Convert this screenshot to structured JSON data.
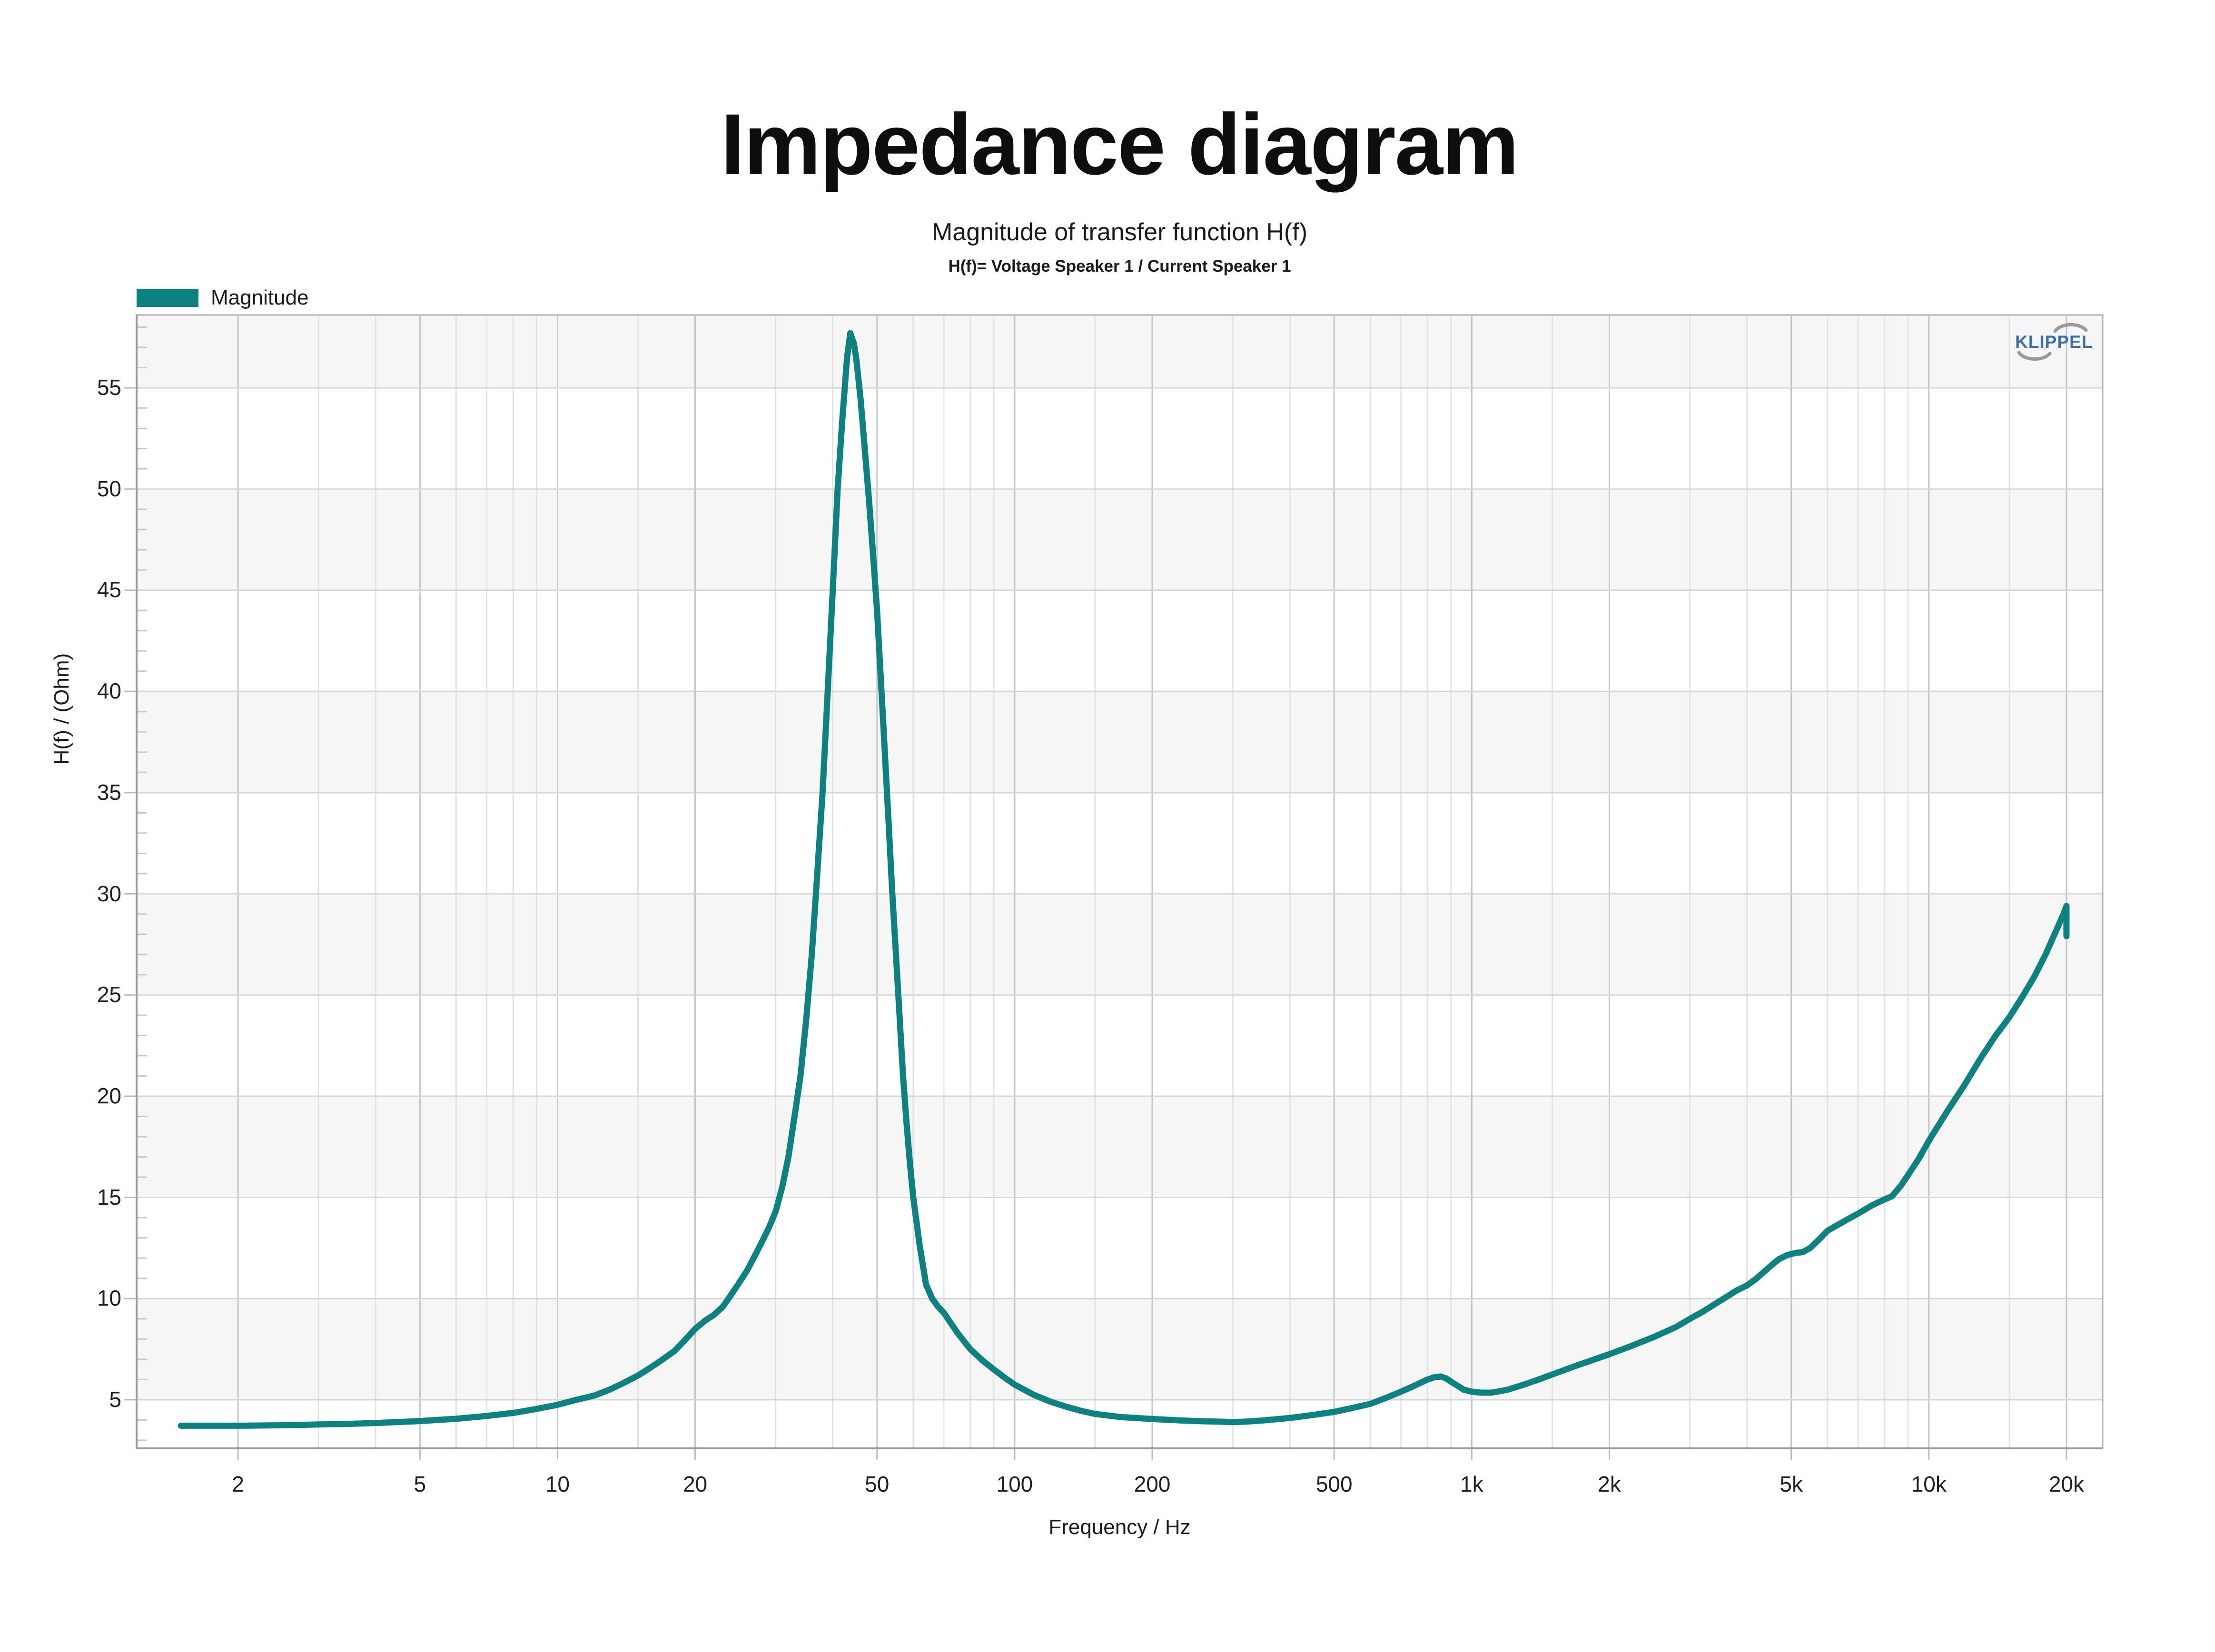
{
  "title": "Impedance diagram",
  "subtitle": "Magnitude of transfer function H(f)",
  "subsubtitle": "H(f)= Voltage Speaker 1 / Current Speaker 1",
  "legend": {
    "label": "Magnitude",
    "color": "#0e8180"
  },
  "logo": {
    "text": "KLIPPEL",
    "text_color": "#3c70a6",
    "arc_color": "#9a9a9a"
  },
  "chart_data": {
    "type": "line",
    "title": "Magnitude of transfer function H(f)",
    "xlabel": "Frequency / Hz",
    "ylabel": "H(f) / (Ohm)",
    "x_scale": "log",
    "xlim": [
      1.2,
      24000
    ],
    "ylim": [
      2.6,
      58.6
    ],
    "grid": true,
    "legend_position": "top-left",
    "x_ticks": [
      {
        "value": 2,
        "label": "2"
      },
      {
        "value": 5,
        "label": "5"
      },
      {
        "value": 10,
        "label": "10"
      },
      {
        "value": 20,
        "label": "20"
      },
      {
        "value": 50,
        "label": "50"
      },
      {
        "value": 100,
        "label": "100"
      },
      {
        "value": 200,
        "label": "200"
      },
      {
        "value": 500,
        "label": "500"
      },
      {
        "value": 1000,
        "label": "1k"
      },
      {
        "value": 2000,
        "label": "2k"
      },
      {
        "value": 5000,
        "label": "5k"
      },
      {
        "value": 10000,
        "label": "10k"
      },
      {
        "value": 20000,
        "label": "20k"
      }
    ],
    "x_minor_gridlines": [
      3,
      4,
      6,
      7,
      8,
      9,
      15,
      30,
      40,
      60,
      70,
      80,
      90,
      150,
      300,
      400,
      600,
      700,
      800,
      900,
      1500,
      3000,
      4000,
      6000,
      7000,
      8000,
      9000,
      15000
    ],
    "y_ticks": [
      5,
      10,
      15,
      20,
      25,
      30,
      35,
      40,
      45,
      50,
      55
    ],
    "y_minor_step": 1,
    "shaded_bands": [
      [
        5,
        10
      ],
      [
        15,
        20
      ],
      [
        25,
        30
      ],
      [
        35,
        40
      ],
      [
        45,
        50
      ],
      [
        55,
        58.6
      ]
    ],
    "band_color": "#f6f6f6",
    "series": [
      {
        "name": "Magnitude",
        "color": "#0e8180",
        "points": [
          [
            1.5,
            3.72
          ],
          [
            1.8,
            3.72
          ],
          [
            2,
            3.72
          ],
          [
            2.5,
            3.74
          ],
          [
            3,
            3.78
          ],
          [
            3.5,
            3.81
          ],
          [
            4,
            3.85
          ],
          [
            5,
            3.95
          ],
          [
            6,
            4.06
          ],
          [
            7,
            4.2
          ],
          [
            8,
            4.35
          ],
          [
            9,
            4.55
          ],
          [
            10,
            4.75
          ],
          [
            11,
            5.0
          ],
          [
            12,
            5.2
          ],
          [
            13,
            5.5
          ],
          [
            14,
            5.85
          ],
          [
            15,
            6.2
          ],
          [
            16,
            6.6
          ],
          [
            17,
            7.0
          ],
          [
            18,
            7.4
          ],
          [
            19,
            7.95
          ],
          [
            20,
            8.5
          ],
          [
            21,
            8.9
          ],
          [
            22,
            9.2
          ],
          [
            23,
            9.6
          ],
          [
            24,
            10.2
          ],
          [
            25,
            10.8
          ],
          [
            26,
            11.4
          ],
          [
            27,
            12.1
          ],
          [
            28,
            12.8
          ],
          [
            29,
            13.5
          ],
          [
            30,
            14.3
          ],
          [
            31,
            15.5
          ],
          [
            32,
            17
          ],
          [
            33,
            19
          ],
          [
            34,
            21
          ],
          [
            35,
            23.8
          ],
          [
            36,
            27
          ],
          [
            37,
            31
          ],
          [
            38,
            35
          ],
          [
            39,
            40
          ],
          [
            40,
            45
          ],
          [
            41,
            50
          ],
          [
            42,
            53.5
          ],
          [
            43,
            56.5
          ],
          [
            43.7,
            57.7
          ],
          [
            44.5,
            57.2
          ],
          [
            45,
            56.5
          ],
          [
            46,
            54.5
          ],
          [
            47,
            52
          ],
          [
            48,
            49.5
          ],
          [
            49,
            46.8
          ],
          [
            50,
            44
          ],
          [
            51,
            40.5
          ],
          [
            52,
            37
          ],
          [
            53,
            33.5
          ],
          [
            54,
            30
          ],
          [
            55,
            27
          ],
          [
            56,
            24
          ],
          [
            57,
            21
          ],
          [
            58,
            18.7
          ],
          [
            59,
            16.7
          ],
          [
            60,
            15
          ],
          [
            62,
            12.6
          ],
          [
            64,
            10.7
          ],
          [
            66,
            10.0
          ],
          [
            68,
            9.6
          ],
          [
            70,
            9.3
          ],
          [
            75,
            8.3
          ],
          [
            80,
            7.5
          ],
          [
            85,
            6.95
          ],
          [
            90,
            6.5
          ],
          [
            95,
            6.1
          ],
          [
            100,
            5.75
          ],
          [
            110,
            5.25
          ],
          [
            120,
            4.9
          ],
          [
            130,
            4.65
          ],
          [
            140,
            4.45
          ],
          [
            150,
            4.3
          ],
          [
            170,
            4.15
          ],
          [
            200,
            4.05
          ],
          [
            230,
            3.98
          ],
          [
            250,
            3.95
          ],
          [
            280,
            3.92
          ],
          [
            300,
            3.9
          ],
          [
            320,
            3.92
          ],
          [
            350,
            3.98
          ],
          [
            400,
            4.1
          ],
          [
            450,
            4.25
          ],
          [
            500,
            4.4
          ],
          [
            550,
            4.6
          ],
          [
            600,
            4.8
          ],
          [
            650,
            5.1
          ],
          [
            700,
            5.4
          ],
          [
            750,
            5.7
          ],
          [
            800,
            6.0
          ],
          [
            830,
            6.12
          ],
          [
            855,
            6.15
          ],
          [
            880,
            6.05
          ],
          [
            900,
            5.9
          ],
          [
            930,
            5.7
          ],
          [
            960,
            5.5
          ],
          [
            1000,
            5.4
          ],
          [
            1050,
            5.35
          ],
          [
            1100,
            5.35
          ],
          [
            1150,
            5.42
          ],
          [
            1200,
            5.5
          ],
          [
            1300,
            5.75
          ],
          [
            1400,
            6.0
          ],
          [
            1500,
            6.25
          ],
          [
            1700,
            6.7
          ],
          [
            2000,
            7.25
          ],
          [
            2200,
            7.6
          ],
          [
            2500,
            8.1
          ],
          [
            2800,
            8.6
          ],
          [
            3000,
            9.0
          ],
          [
            3200,
            9.35
          ],
          [
            3500,
            9.9
          ],
          [
            3800,
            10.4
          ],
          [
            4000,
            10.65
          ],
          [
            4200,
            11.0
          ],
          [
            4500,
            11.6
          ],
          [
            4700,
            11.95
          ],
          [
            4900,
            12.15
          ],
          [
            5100,
            12.25
          ],
          [
            5300,
            12.3
          ],
          [
            5500,
            12.5
          ],
          [
            5800,
            13.0
          ],
          [
            6000,
            13.35
          ],
          [
            6500,
            13.8
          ],
          [
            7000,
            14.2
          ],
          [
            7500,
            14.6
          ],
          [
            8000,
            14.9
          ],
          [
            8300,
            15.05
          ],
          [
            8700,
            15.6
          ],
          [
            9000,
            16.1
          ],
          [
            9500,
            16.9
          ],
          [
            10000,
            17.8
          ],
          [
            11000,
            19.3
          ],
          [
            12000,
            20.6
          ],
          [
            13000,
            21.9
          ],
          [
            14000,
            23.0
          ],
          [
            15000,
            23.9
          ],
          [
            16000,
            24.9
          ],
          [
            17000,
            25.9
          ],
          [
            18000,
            27.0
          ],
          [
            19000,
            28.2
          ],
          [
            19700,
            29.0
          ],
          [
            20000,
            29.4
          ],
          [
            20000,
            27.9
          ]
        ]
      }
    ]
  }
}
